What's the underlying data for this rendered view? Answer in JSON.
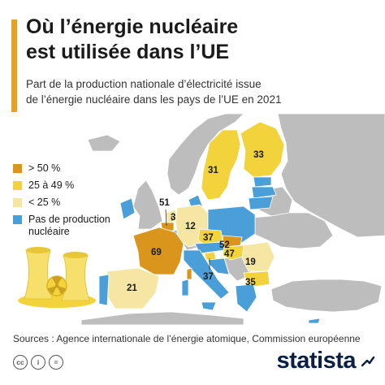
{
  "header": {
    "title_line1": "Où l’énergie nucléaire",
    "title_line2": "est utilisée dans l’UE",
    "subtitle_line1": "Part de la production nationale d’électricité issue",
    "subtitle_line2": "de l’énergie nucléaire dans les pays de l’UE en 2021"
  },
  "colors": {
    "accent": "#e3a321",
    "over_50": "#d9951c",
    "from_25_to_49": "#f2d33c",
    "under_25": "#f6e6a4",
    "no_production": "#4a9fd9",
    "non_eu": "#bdbdbd",
    "sea": "#ffffff"
  },
  "legend": [
    {
      "label": "> 50 %",
      "color": "#d9951c"
    },
    {
      "label": "25 à 49 %",
      "color": "#f2d33c"
    },
    {
      "label": "< 25 %",
      "color": "#f6e6a4"
    },
    {
      "label": "Pas de production nucléaire",
      "color": "#4a9fd9"
    }
  ],
  "map_values": {
    "finland": "33",
    "sweden": "31",
    "belgium": "51",
    "netherlands": "3",
    "germany": "12",
    "france": "69",
    "czechia": "37",
    "slovakia": "52",
    "hungary": "47",
    "slovenia": "37",
    "romania": "19",
    "bulgaria": "35",
    "spain": "21"
  },
  "footer": {
    "source": "Sources : Agence internationale de l’énergie atomique, Commission européenne",
    "cc_icons": [
      "cc",
      "i",
      "="
    ],
    "brand": "statista"
  }
}
